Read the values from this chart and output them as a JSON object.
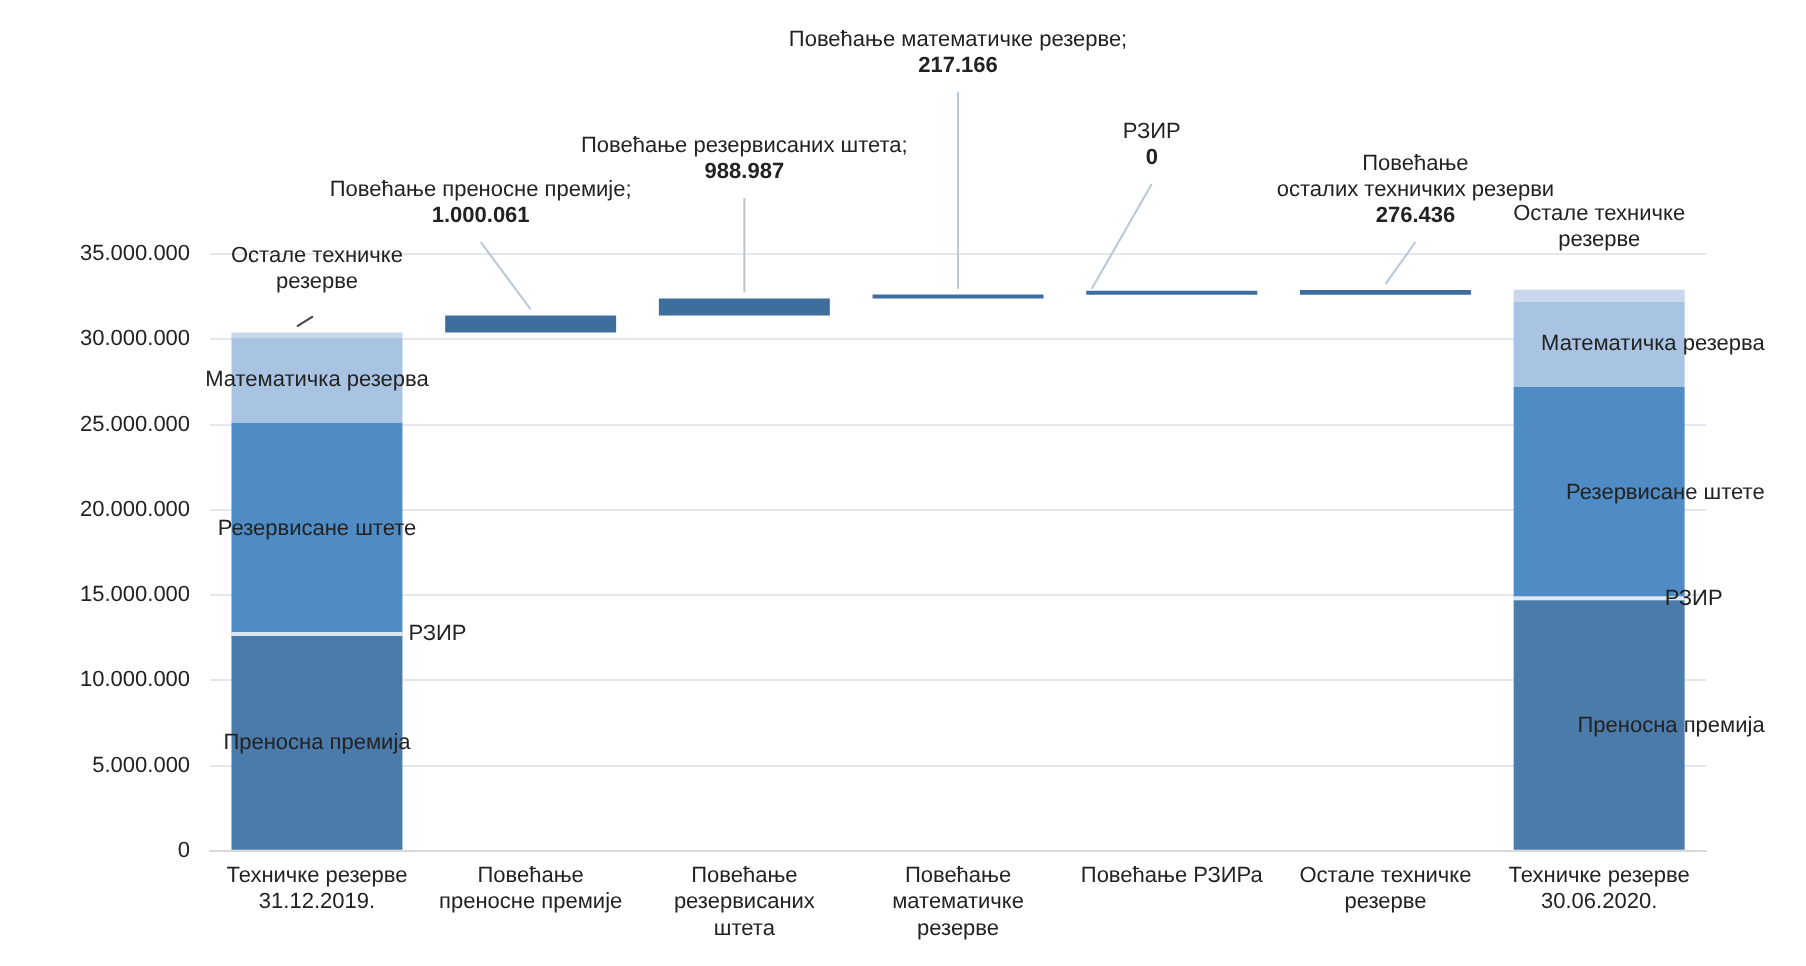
{
  "chart_data": {
    "type": "bar",
    "stacked": true,
    "grid": "y",
    "legend": false,
    "categories": [
      "Техничке резерве 31.12.2019.",
      "Повећање преносне премије",
      "Повећање резервисаних штета",
      "Повећање математичке резерве",
      "Повећање РЗИРа",
      "Остале техничке резерве",
      "Техничке резерве 30.06.2020."
    ],
    "ylim": [
      0,
      35000000
    ],
    "yticks": [
      0,
      {
        "value": 5000000,
        "label": "5.000.000"
      },
      {
        "value": 10000000,
        "label": "10.000.000"
      },
      {
        "value": 15000000,
        "label": "15.000.000"
      },
      {
        "value": 20000000,
        "label": "20.000.000"
      },
      {
        "value": 25000000,
        "label": "25.000.000"
      },
      {
        "value": 30000000,
        "label": "30.000.000"
      },
      {
        "value": 35000000,
        "label": "35.000.000"
      }
    ],
    "series": [
      {
        "name": "Преносна премија",
        "color": "#4a7bab",
        "values": [
          12600000,
          null,
          null,
          null,
          null,
          null,
          14700000
        ]
      },
      {
        "name": "РЗИР",
        "color": "#dce6f2",
        "values": [
          100000,
          null,
          null,
          null,
          null,
          null,
          100000
        ]
      },
      {
        "name": "Резервисане штете",
        "color": "#4f8bc4",
        "values": [
          12400000,
          null,
          null,
          null,
          null,
          null,
          12400000
        ]
      },
      {
        "name": "Математичка резерва",
        "color": "#a9c3e3",
        "values": [
          5000000,
          null,
          null,
          null,
          null,
          null,
          5000000
        ]
      },
      {
        "name": "Остале техничке резерве",
        "color": "#c8d7ea",
        "values": [
          300000,
          null,
          null,
          null,
          null,
          null,
          700000
        ]
      },
      {
        "color": "#3e6e9e",
        "base": [
          null,
          30400000,
          31400061,
          32389048,
          32606214,
          32606214,
          null
        ],
        "values": [
          null,
          1000061,
          988987,
          217166,
          0,
          276436,
          null
        ],
        "value_labels": [
          null,
          "1.000.061",
          "988.987",
          "217.166",
          "0",
          "276.436",
          null
        ]
      }
    ],
    "annotations": [
      "Повећање преносне премије;",
      "Повећање резервисаних штета;",
      "Повећање математичке резерве;",
      "РЗИР",
      "Повећање осталих техничких резерви"
    ]
  }
}
